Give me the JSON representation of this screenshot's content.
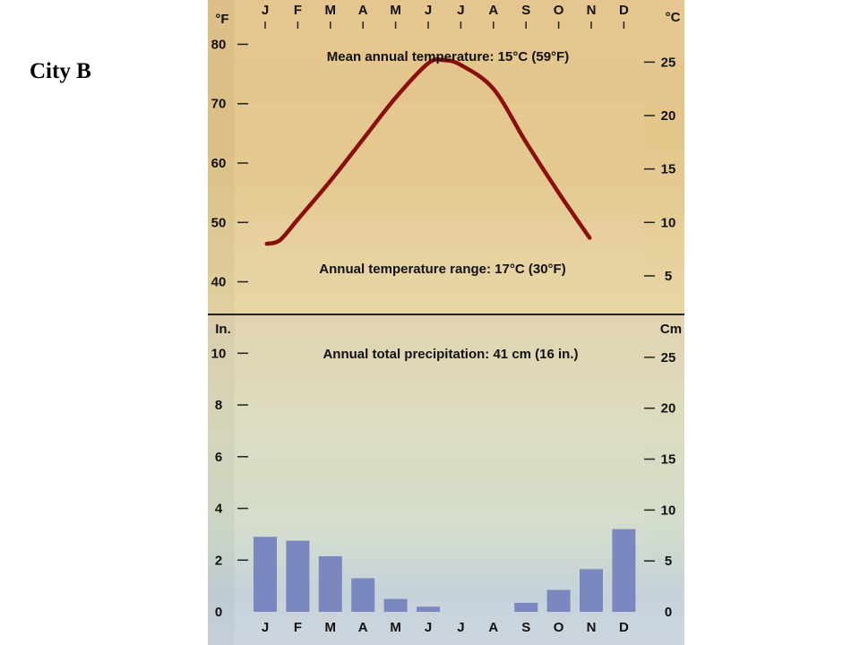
{
  "page": {
    "label": "City B"
  },
  "chart_data": {
    "type": "climograph",
    "months": [
      "J",
      "F",
      "M",
      "A",
      "M",
      "J",
      "J",
      "A",
      "S",
      "O",
      "N",
      "D"
    ],
    "temperature": {
      "type": "line",
      "series_color": "#8b0f0f",
      "left_unit": "°F",
      "right_unit": "°C",
      "left_ticks": [
        40,
        50,
        60,
        70,
        80
      ],
      "right_ticks": [
        5,
        10,
        15,
        20,
        25
      ],
      "ylim_f": [
        34.5,
        85.5
      ],
      "values_f": [
        46.5,
        50.5,
        57,
        64,
        72,
        77,
        77,
        73.5,
        63.5,
        55,
        47.5,
        null
      ],
      "curve_values_f": [
        {
          "x": 0.05,
          "y": 46.4
        },
        {
          "x": 0.45,
          "y": 47
        },
        {
          "x": 1,
          "y": 50.5
        },
        {
          "x": 2,
          "y": 57
        },
        {
          "x": 3,
          "y": 64
        },
        {
          "x": 4,
          "y": 71
        },
        {
          "x": 5,
          "y": 76.8
        },
        {
          "x": 5.5,
          "y": 77.3
        },
        {
          "x": 6,
          "y": 76.5
        },
        {
          "x": 7,
          "y": 72.5
        },
        {
          "x": 8,
          "y": 63.5
        },
        {
          "x": 9,
          "y": 55
        },
        {
          "x": 9.95,
          "y": 47.4
        }
      ],
      "mean_annual_label": "Mean annual temperature: 15°C (59°F)",
      "range_label": "Annual temperature range: 17°C (30°F)"
    },
    "precipitation": {
      "type": "bar",
      "bar_color": "#7b88bf",
      "left_unit": "In.",
      "right_unit": "Cm",
      "left_ticks": [
        0,
        2,
        4,
        6,
        8,
        10
      ],
      "right_ticks": [
        0,
        5,
        10,
        15,
        20,
        25
      ],
      "ylim_in": [
        0,
        11.5
      ],
      "values_in": [
        2.9,
        2.75,
        2.15,
        1.3,
        0.5,
        0.2,
        0,
        0,
        0.35,
        0.85,
        1.65,
        3.2
      ],
      "total_label": "Annual total precipitation: 41 cm (16 in.)"
    }
  }
}
